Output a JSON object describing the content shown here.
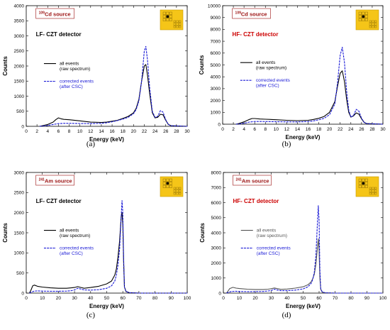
{
  "chart_data": [
    {
      "id": "a",
      "type": "line",
      "caption": "(a)",
      "source_label": {
        "sup": "109",
        "text": "Cd source"
      },
      "detector_label": "LF- CZT detector",
      "detector_color": "#000000",
      "xlabel": "Energy (keV)",
      "ylabel": "Counts",
      "xlim": [
        0,
        30
      ],
      "ylim": [
        0,
        4000
      ],
      "xticks": [
        0,
        2,
        4,
        6,
        8,
        10,
        12,
        14,
        16,
        18,
        20,
        22,
        24,
        26,
        28,
        30
      ],
      "yticks": [
        0,
        500,
        1000,
        1500,
        2000,
        2500,
        3000,
        3500,
        4000
      ],
      "series": [
        {
          "name": "all events",
          "name2": "(raw spectrum)",
          "color": "#000000",
          "x": [
            2.5,
            3.0,
            4.0,
            5.0,
            5.5,
            6.0,
            6.5,
            7.0,
            8.0,
            10.0,
            12.0,
            14.0,
            15.0,
            16.0,
            17.0,
            18.0,
            19.0,
            20.0,
            20.5,
            21.0,
            21.5,
            22.0,
            22.3,
            22.6,
            23.0,
            23.5,
            24.0,
            24.5,
            25.0,
            25.5,
            26.0,
            26.5,
            27.0,
            30.0
          ],
          "y": [
            0,
            20,
            60,
            140,
            220,
            280,
            250,
            230,
            220,
            180,
            140,
            130,
            140,
            170,
            200,
            260,
            330,
            450,
            600,
            900,
            1500,
            2000,
            2050,
            1700,
            1100,
            450,
            280,
            300,
            400,
            380,
            200,
            60,
            20,
            0
          ]
        },
        {
          "name": "corrected events",
          "name2": "(after CSC)",
          "color": "#1a1ad6",
          "x": [
            2.5,
            3.0,
            4.0,
            5.0,
            6.0,
            7.0,
            8.0,
            10.0,
            12.0,
            14.0,
            15.0,
            16.0,
            17.0,
            18.0,
            19.0,
            20.0,
            20.5,
            21.0,
            21.5,
            22.0,
            22.3,
            22.6,
            23.0,
            23.5,
            24.0,
            24.5,
            25.0,
            25.5,
            26.0,
            26.5,
            27.0,
            30.0
          ],
          "y": [
            0,
            10,
            25,
            60,
            90,
            100,
            100,
            95,
            90,
            100,
            120,
            150,
            190,
            240,
            300,
            420,
            560,
            850,
            1500,
            2500,
            2650,
            2200,
            1300,
            500,
            300,
            330,
            520,
            470,
            220,
            60,
            20,
            0
          ]
        }
      ]
    },
    {
      "id": "b",
      "type": "line",
      "caption": "(b)",
      "source_label": {
        "sup": "109",
        "text": "Cd source"
      },
      "detector_label": "HF- CZT detector",
      "detector_color": "#cc0000",
      "xlabel": "Energy (keV)",
      "ylabel": "Counts",
      "xlim": [
        0,
        30
      ],
      "ylim": [
        0,
        10000
      ],
      "xticks": [
        0,
        2,
        4,
        6,
        8,
        10,
        12,
        14,
        16,
        18,
        20,
        22,
        24,
        26,
        28,
        30
      ],
      "yticks": [
        0,
        1000,
        2000,
        3000,
        4000,
        5000,
        6000,
        7000,
        8000,
        9000,
        10000
      ],
      "series": [
        {
          "name": "all events",
          "name2": "(raw spectrum)",
          "color": "#000000",
          "x": [
            2.5,
            3.0,
            4.0,
            5.0,
            5.5,
            6.0,
            7.0,
            8.0,
            10.0,
            12.0,
            14.0,
            16.0,
            17.0,
            18.0,
            19.0,
            20.0,
            21.0,
            21.5,
            22.0,
            22.4,
            22.8,
            23.2,
            23.6,
            24.0,
            24.5,
            25.0,
            25.5,
            26.0,
            26.5,
            27.0,
            30.0
          ],
          "y": [
            0,
            50,
            200,
            400,
            480,
            480,
            440,
            420,
            380,
            330,
            300,
            330,
            400,
            500,
            650,
            1000,
            1900,
            3200,
            4300,
            4500,
            3600,
            2100,
            1000,
            600,
            700,
            950,
            850,
            450,
            150,
            50,
            0
          ]
        },
        {
          "name": "corrected events",
          "name2": "(after CSC)",
          "color": "#1a1ad6",
          "x": [
            2.5,
            3.0,
            4.0,
            5.0,
            6.0,
            7.0,
            8.0,
            10.0,
            12.0,
            14.0,
            16.0,
            17.0,
            18.0,
            19.0,
            20.0,
            21.0,
            21.5,
            22.0,
            22.4,
            22.8,
            23.2,
            23.6,
            24.0,
            24.5,
            25.0,
            25.5,
            26.0,
            26.5,
            27.0,
            30.0
          ],
          "y": [
            0,
            20,
            80,
            180,
            230,
            230,
            220,
            210,
            200,
            190,
            220,
            280,
            370,
            500,
            800,
            1700,
            3500,
            5800,
            6500,
            5200,
            2800,
            1200,
            600,
            750,
            1250,
            1100,
            500,
            150,
            50,
            0
          ]
        }
      ]
    },
    {
      "id": "c",
      "type": "line",
      "caption": "(c)",
      "source_label": {
        "sup": "241",
        "text": "Am source"
      },
      "detector_label": "LF- CZT detector",
      "detector_color": "#000000",
      "xlabel": "Energy (keV)",
      "ylabel": "Counts",
      "xlim": [
        0,
        100
      ],
      "ylim": [
        0,
        3000
      ],
      "xticks": [
        0,
        10,
        20,
        30,
        40,
        50,
        60,
        70,
        80,
        90,
        100
      ],
      "yticks": [
        0,
        500,
        1000,
        1500,
        2000,
        2500,
        3000
      ],
      "series": [
        {
          "name": "all events",
          "name2": "(raw spectrum)",
          "color": "#000000",
          "x": [
            2,
            3,
            4,
            5,
            7,
            10,
            15,
            20,
            25,
            28,
            30,
            32,
            34,
            36,
            40,
            45,
            50,
            53,
            55,
            56,
            57,
            58,
            59,
            59.5,
            60,
            60.5,
            61,
            62,
            64,
            70,
            100
          ],
          "y": [
            0,
            80,
            180,
            200,
            170,
            150,
            130,
            120,
            120,
            130,
            140,
            160,
            140,
            120,
            140,
            170,
            230,
            300,
            450,
            600,
            900,
            1300,
            1900,
            2000,
            1700,
            800,
            150,
            40,
            10,
            0,
            0
          ]
        },
        {
          "name": "corrected events",
          "name2": "(after CSC)",
          "color": "#1a1ad6",
          "x": [
            2,
            3,
            5,
            7,
            10,
            15,
            20,
            25,
            28,
            30,
            32,
            34,
            36,
            40,
            45,
            50,
            53,
            55,
            56,
            57,
            58,
            59,
            59.5,
            60,
            60.5,
            61,
            62,
            64,
            70,
            100
          ],
          "y": [
            0,
            20,
            50,
            55,
            50,
            45,
            45,
            50,
            60,
            80,
            120,
            100,
            80,
            75,
            85,
            120,
            180,
            300,
            450,
            700,
            1100,
            1900,
            2300,
            2000,
            900,
            150,
            40,
            10,
            0,
            0
          ]
        }
      ]
    },
    {
      "id": "d",
      "type": "line",
      "caption": "(d)",
      "source_label": {
        "sup": "241",
        "text": "Am source"
      },
      "detector_label": "HF- CZT detector",
      "detector_color": "#cc0000",
      "xlabel": "Energy (keV)",
      "ylabel": "Counts",
      "xlim": [
        0,
        100
      ],
      "ylim": [
        0,
        8000
      ],
      "xticks": [
        0,
        10,
        20,
        30,
        40,
        50,
        60,
        70,
        80,
        90,
        100
      ],
      "yticks": [
        0,
        1000,
        2000,
        3000,
        4000,
        5000,
        6000,
        7000,
        8000
      ],
      "series": [
        {
          "name": "all events",
          "name2": "(raw spectrum)",
          "color": "#555555",
          "x": [
            2,
            3,
            4,
            6,
            8,
            10,
            15,
            20,
            25,
            28,
            30,
            32,
            34,
            36,
            40,
            45,
            50,
            53,
            55,
            56,
            57,
            58,
            59,
            59.5,
            60,
            60.5,
            61,
            62,
            64,
            70,
            100
          ],
          "y": [
            0,
            150,
            300,
            380,
            330,
            300,
            260,
            240,
            240,
            260,
            290,
            340,
            290,
            250,
            270,
            330,
            420,
            550,
            750,
            950,
            1250,
            1900,
            3100,
            3600,
            2800,
            1000,
            250,
            60,
            20,
            0,
            0
          ]
        },
        {
          "name": "corrected events",
          "name2": "(after CSC)",
          "color": "#1a1ad6",
          "x": [
            2,
            3,
            5,
            8,
            10,
            15,
            20,
            25,
            28,
            30,
            32,
            34,
            36,
            40,
            45,
            50,
            53,
            55,
            56,
            57,
            58,
            59,
            59.5,
            60,
            60.5,
            61,
            62,
            64,
            70,
            100
          ],
          "y": [
            0,
            40,
            110,
            120,
            110,
            100,
            100,
            110,
            140,
            170,
            260,
            200,
            160,
            160,
            200,
            280,
            420,
            650,
            900,
            1400,
            2500,
            4800,
            5800,
            4800,
            1600,
            300,
            70,
            20,
            0,
            0
          ]
        }
      ]
    }
  ]
}
